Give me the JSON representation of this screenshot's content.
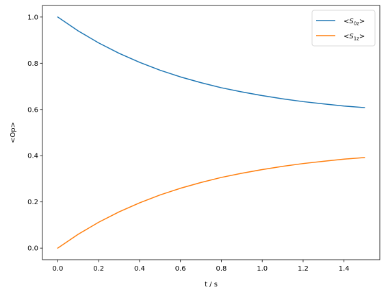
{
  "chart_data": {
    "type": "line",
    "xlabel": "t / s",
    "ylabel": "<Op>",
    "xlim": [
      -0.075,
      1.575
    ],
    "ylim": [
      -0.05,
      1.05
    ],
    "xticks": [
      0.0,
      0.2,
      0.4,
      0.6,
      0.8,
      1.0,
      1.2,
      1.4
    ],
    "xtick_labels": [
      "0.0",
      "0.2",
      "0.4",
      "0.6",
      "0.8",
      "1.0",
      "1.2",
      "1.4"
    ],
    "yticks": [
      0.0,
      0.2,
      0.4,
      0.6,
      0.8,
      1.0
    ],
    "ytick_labels": [
      "0.0",
      "0.2",
      "0.4",
      "0.6",
      "0.8",
      "1.0"
    ],
    "grid": false,
    "legend_position": "top-right",
    "x": [
      0.0,
      0.1,
      0.2,
      0.3,
      0.4,
      0.5,
      0.6,
      0.7,
      0.8,
      0.9,
      1.0,
      1.1,
      1.2,
      1.3,
      1.4,
      1.5
    ],
    "series": [
      {
        "name": "<S0z>",
        "legend_base": "S",
        "legend_sub": "0z",
        "color": "#1f77b4",
        "values": [
          1.0,
          0.94,
          0.888,
          0.843,
          0.804,
          0.77,
          0.741,
          0.716,
          0.694,
          0.676,
          0.66,
          0.646,
          0.634,
          0.624,
          0.615,
          0.608
        ]
      },
      {
        "name": "<S1z>",
        "legend_base": "S",
        "legend_sub": "1z",
        "color": "#ff7f0e",
        "values": [
          0.0,
          0.06,
          0.112,
          0.157,
          0.196,
          0.23,
          0.259,
          0.284,
          0.306,
          0.324,
          0.34,
          0.354,
          0.366,
          0.376,
          0.385,
          0.392
        ]
      }
    ]
  }
}
